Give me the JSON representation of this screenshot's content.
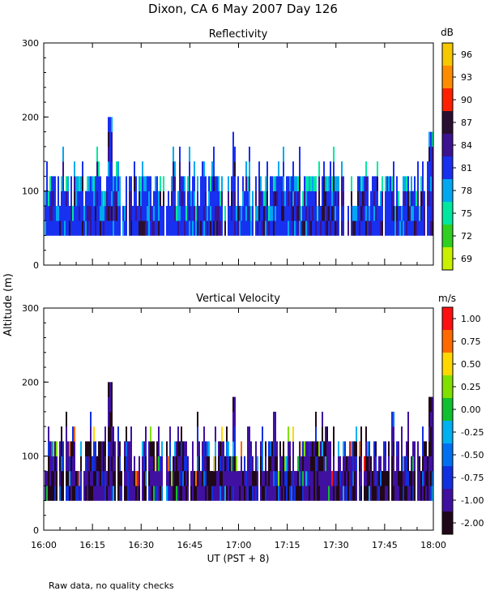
{
  "page": {
    "title": "Dixon, CA  6 May 2007  Day 126",
    "footer": "Raw data, no quality checks",
    "ylabel": "Altitude (m)",
    "xlabel": "UT  (PST + 8)"
  },
  "chart_data": [
    {
      "type": "heatmap",
      "title": "Reflectivity",
      "ylabel": "Altitude (m)",
      "xlabel": "UT  (PST + 8)",
      "ylim": [
        0,
        300
      ],
      "yticks": [
        "0",
        "100",
        "200",
        "300"
      ],
      "xticks": [
        "16:00",
        "16:15",
        "16:30",
        "16:45",
        "17:00",
        "17:15",
        "17:30",
        "17:45",
        "18:00"
      ],
      "colorbar": {
        "unit": "dB",
        "labels": [
          "96",
          "93",
          "90",
          "87",
          "84",
          "81",
          "78",
          "75",
          "72",
          "69"
        ],
        "colors": [
          "#f5c800",
          "#ff8c00",
          "#ff2000",
          "#2a1030",
          "#3c1490",
          "#1830f0",
          "#00a8f0",
          "#00e8a0",
          "#30d020",
          "#c8f000"
        ]
      },
      "series_summary": "Echo columns from ~40 m to ~120-180 m altitude across 16:00-18:00 UT, mostly 81-84 dB with cells up to ~200 m near 16:19 and ~180 m near 16:58 and 17:59"
    },
    {
      "type": "heatmap",
      "title": "Vertical Velocity",
      "ylabel": "Altitude (m)",
      "xlabel": "UT  (PST + 8)",
      "ylim": [
        0,
        300
      ],
      "yticks": [
        "0",
        "100",
        "200",
        "300"
      ],
      "xticks": [
        "16:00",
        "16:15",
        "16:30",
        "16:45",
        "17:00",
        "17:15",
        "17:30",
        "17:45",
        "18:00"
      ],
      "colorbar": {
        "unit": "m/s",
        "labels": [
          "1.00",
          "0.75",
          "0.50",
          "0.25",
          "0.00",
          "-0.25",
          "-0.50",
          "-0.75",
          "-1.00",
          "-2.00"
        ],
        "colors": [
          "#ff1010",
          "#ff6a00",
          "#ffd800",
          "#80e000",
          "#10c030",
          "#00b0f0",
          "#0070f0",
          "#1030e0",
          "#4010a0",
          "#200818"
        ]
      },
      "series_summary": "Mostly -0.75 to -2.00 m/s between ~40 m and ~120 m, with scattered positive updraft spikes up to ~180 m near 16:53-16:58, 17:22 and 17:59"
    }
  ]
}
